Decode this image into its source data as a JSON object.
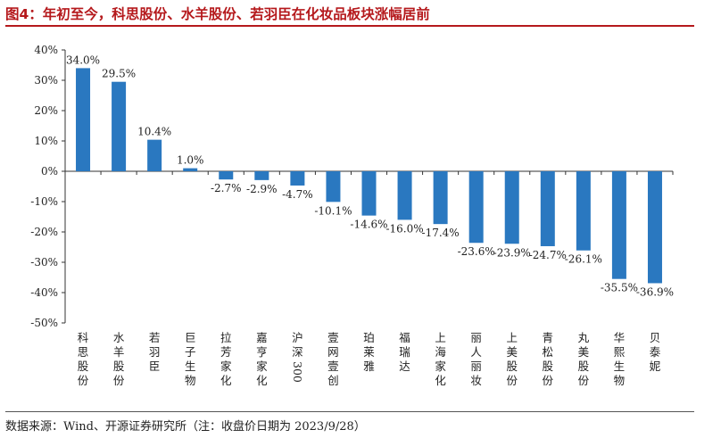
{
  "title": "图4：年初至今，科思股份、水羊股份、若羽臣在化妆品板块涨幅居前",
  "source": "数据来源：Wind、开源证券研究所（注：收盘价日期为 2023/9/28）",
  "colors": {
    "bar": "#2a78c0",
    "title": "#b5191c",
    "axis": "#333333"
  },
  "chart_data": {
    "type": "bar",
    "title": "",
    "xlabel": "",
    "ylabel": "",
    "unit": "%",
    "ylim": [
      -50,
      40
    ],
    "yticks": [
      "40%",
      "30%",
      "20%",
      "10%",
      "0%",
      "-10%",
      "-20%",
      "-30%",
      "-40%",
      "-50%"
    ],
    "categories": [
      "科思股份",
      "水羊股份",
      "若羽臣",
      "巨子生物",
      "拉芳家化",
      "嘉亨家化",
      "沪深300",
      "壹网壹创",
      "珀莱雅",
      "福瑞达",
      "上海家化",
      "丽人丽妆",
      "上美股份",
      "青松股份",
      "丸美股份",
      "华熙生物",
      "贝泰妮"
    ],
    "values": [
      34.0,
      29.5,
      10.4,
      1.0,
      -2.7,
      -2.9,
      -4.7,
      -10.1,
      -14.6,
      -16.0,
      -17.4,
      -23.6,
      -23.9,
      -24.7,
      -26.1,
      -35.5,
      -36.9
    ],
    "data_labels": [
      "34.0%",
      "29.5%",
      "10.4%",
      "1.0%",
      "-2.7%",
      "-2.9%",
      "-4.7%",
      "-10.1%",
      "-14.6%",
      "-16.0%",
      "-17.4%",
      "-23.6%",
      "-23.9%",
      "-24.7%",
      "-26.1%",
      "-35.5%",
      "-36.9%"
    ],
    "grid": false,
    "legend": "none"
  }
}
